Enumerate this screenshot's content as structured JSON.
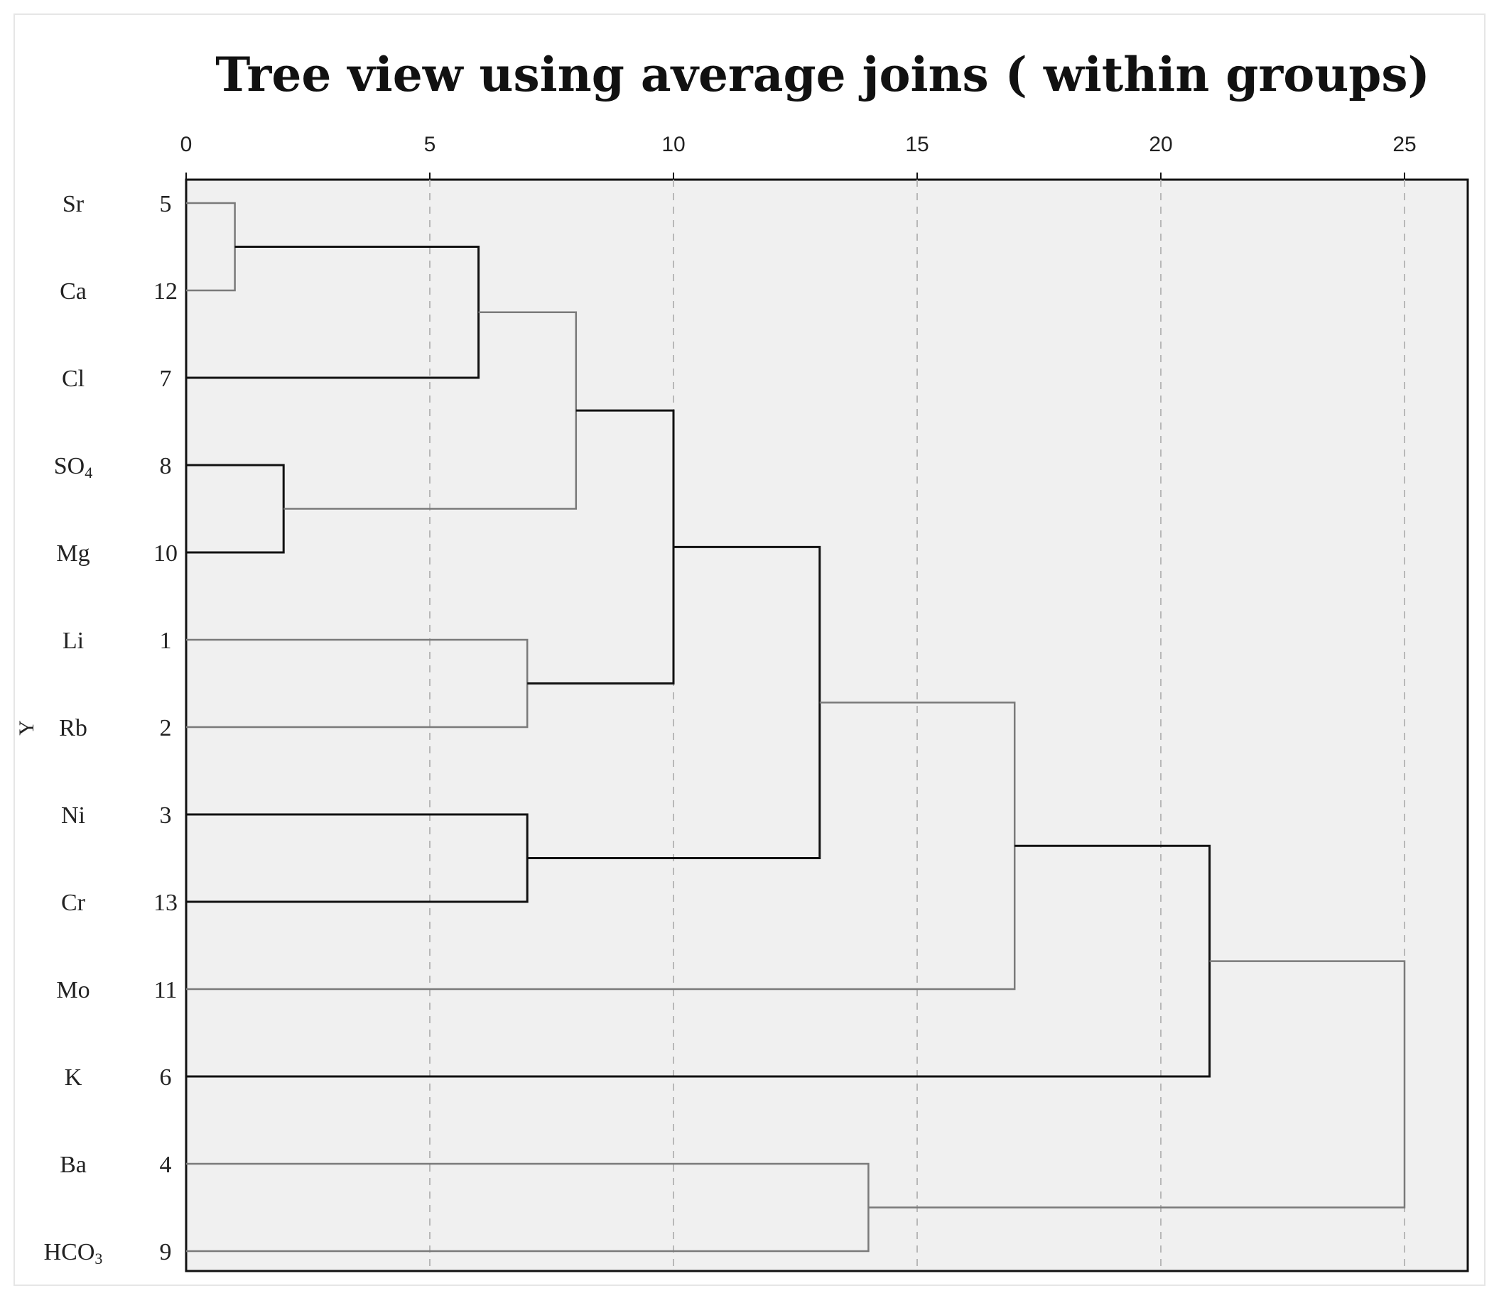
{
  "chart_data": {
    "type": "dendrogram",
    "title": "Tree view using average joins ( within groups)",
    "ylabel": "Y",
    "xlabel": "",
    "xlim": [
      0,
      26.3
    ],
    "x_ticks": [
      0,
      5,
      10,
      15,
      20,
      25
    ],
    "grid": true,
    "leaves": [
      {
        "name": "Sr",
        "number": "5"
      },
      {
        "name": "Ca",
        "number": "12"
      },
      {
        "name": "Cl",
        "number": "7"
      },
      {
        "name": "SO4",
        "number": "8"
      },
      {
        "name": "Mg",
        "number": "10"
      },
      {
        "name": "Li",
        "number": "1"
      },
      {
        "name": "Rb",
        "number": "2"
      },
      {
        "name": "Ni",
        "number": "3"
      },
      {
        "name": "Cr",
        "number": "13"
      },
      {
        "name": "Mo",
        "number": "11"
      },
      {
        "name": "K",
        "number": "6"
      },
      {
        "name": "Ba",
        "number": "4"
      },
      {
        "name": "HCO3",
        "number": "9"
      }
    ],
    "merges": [
      {
        "left": "Sr",
        "right": "Ca",
        "distance": 1
      },
      {
        "left": "SO4",
        "right": "Mg",
        "distance": 2
      },
      {
        "left": "Sr-Ca",
        "right": "Cl",
        "distance": 6
      },
      {
        "left": "Li",
        "right": "Rb",
        "distance": 7
      },
      {
        "left": "Ni",
        "right": "Cr",
        "distance": 7
      },
      {
        "left": "Sr-Ca-Cl",
        "right": "SO4-Mg",
        "distance": 8
      },
      {
        "left": "Sr-Ca-Cl-SO4-Mg",
        "right": "Li-Rb",
        "distance": 10
      },
      {
        "left": "Sr…Rb",
        "right": "Ni-Cr",
        "distance": 13
      },
      {
        "left": "Ba",
        "right": "HCO3",
        "distance": 14
      },
      {
        "left": "Sr…Cr",
        "right": "Mo",
        "distance": 17
      },
      {
        "left": "Sr…Mo",
        "right": "K",
        "distance": 21
      },
      {
        "left": "Sr…K",
        "right": "Ba-HCO3",
        "distance": 25
      }
    ]
  }
}
